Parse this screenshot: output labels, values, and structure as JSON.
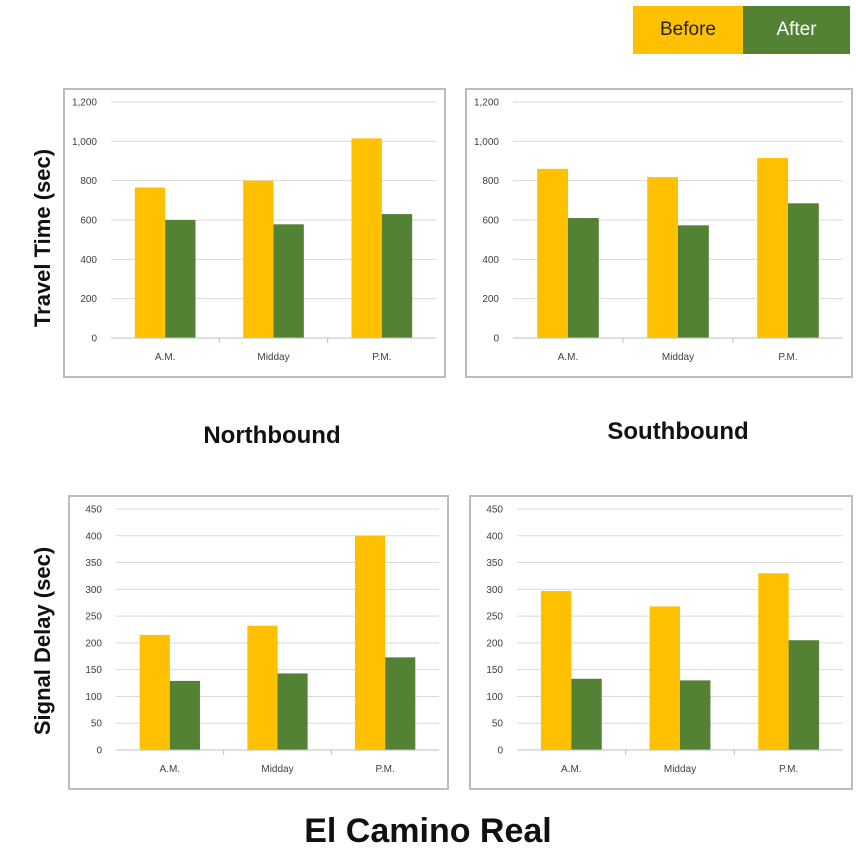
{
  "legend": {
    "before_label": "Before",
    "after_label": "After",
    "before_color": "#ffc000",
    "after_color": "#548235"
  },
  "labels": {
    "travel_time_ylabel": "Travel Time (sec)",
    "signal_delay_ylabel": "Signal Delay (sec)",
    "northbound": "Northbound",
    "southbound": "Southbound",
    "title": "El Camino Real"
  },
  "chart_data": [
    {
      "type": "bar",
      "title": "",
      "categories": [
        "A.M.",
        "Midday",
        "P.M."
      ],
      "series": [
        {
          "name": "Before",
          "values": [
            765,
            800,
            1015
          ]
        },
        {
          "name": "After",
          "values": [
            600,
            578,
            630
          ]
        }
      ],
      "ylim": [
        0,
        1200
      ],
      "yticks": [
        0,
        200,
        400,
        600,
        800,
        1000,
        1200
      ],
      "ytick_labels": [
        "0",
        "200",
        "400",
        "600",
        "800",
        "1,000",
        "1,200"
      ],
      "grid": true
    },
    {
      "type": "bar",
      "title": "",
      "categories": [
        "A.M.",
        "Midday",
        "P.M."
      ],
      "series": [
        {
          "name": "Before",
          "values": [
            860,
            818,
            915
          ]
        },
        {
          "name": "After",
          "values": [
            610,
            573,
            685
          ]
        }
      ],
      "ylim": [
        0,
        1200
      ],
      "yticks": [
        0,
        200,
        400,
        600,
        800,
        1000,
        1200
      ],
      "ytick_labels": [
        "0",
        "200",
        "400",
        "600",
        "800",
        "1,000",
        "1,200"
      ],
      "grid": true
    },
    {
      "type": "bar",
      "title": "",
      "categories": [
        "A.M.",
        "Midday",
        "P.M."
      ],
      "series": [
        {
          "name": "Before",
          "values": [
            215,
            232,
            400
          ]
        },
        {
          "name": "After",
          "values": [
            129,
            143,
            173
          ]
        }
      ],
      "ylim": [
        0,
        450
      ],
      "yticks": [
        0,
        50,
        100,
        150,
        200,
        250,
        300,
        350,
        400,
        450
      ],
      "ytick_labels": [
        "0",
        "50",
        "100",
        "150",
        "200",
        "250",
        "300",
        "350",
        "400",
        "450"
      ],
      "grid": true
    },
    {
      "type": "bar",
      "title": "",
      "categories": [
        "A.M.",
        "Midday",
        "P.M."
      ],
      "series": [
        {
          "name": "Before",
          "values": [
            297,
            268,
            330
          ]
        },
        {
          "name": "After",
          "values": [
            133,
            130,
            205
          ]
        }
      ],
      "ylim": [
        0,
        450
      ],
      "yticks": [
        0,
        50,
        100,
        150,
        200,
        250,
        300,
        350,
        400,
        450
      ],
      "ytick_labels": [
        "0",
        "50",
        "100",
        "150",
        "200",
        "250",
        "300",
        "350",
        "400",
        "450"
      ],
      "grid": true
    }
  ]
}
